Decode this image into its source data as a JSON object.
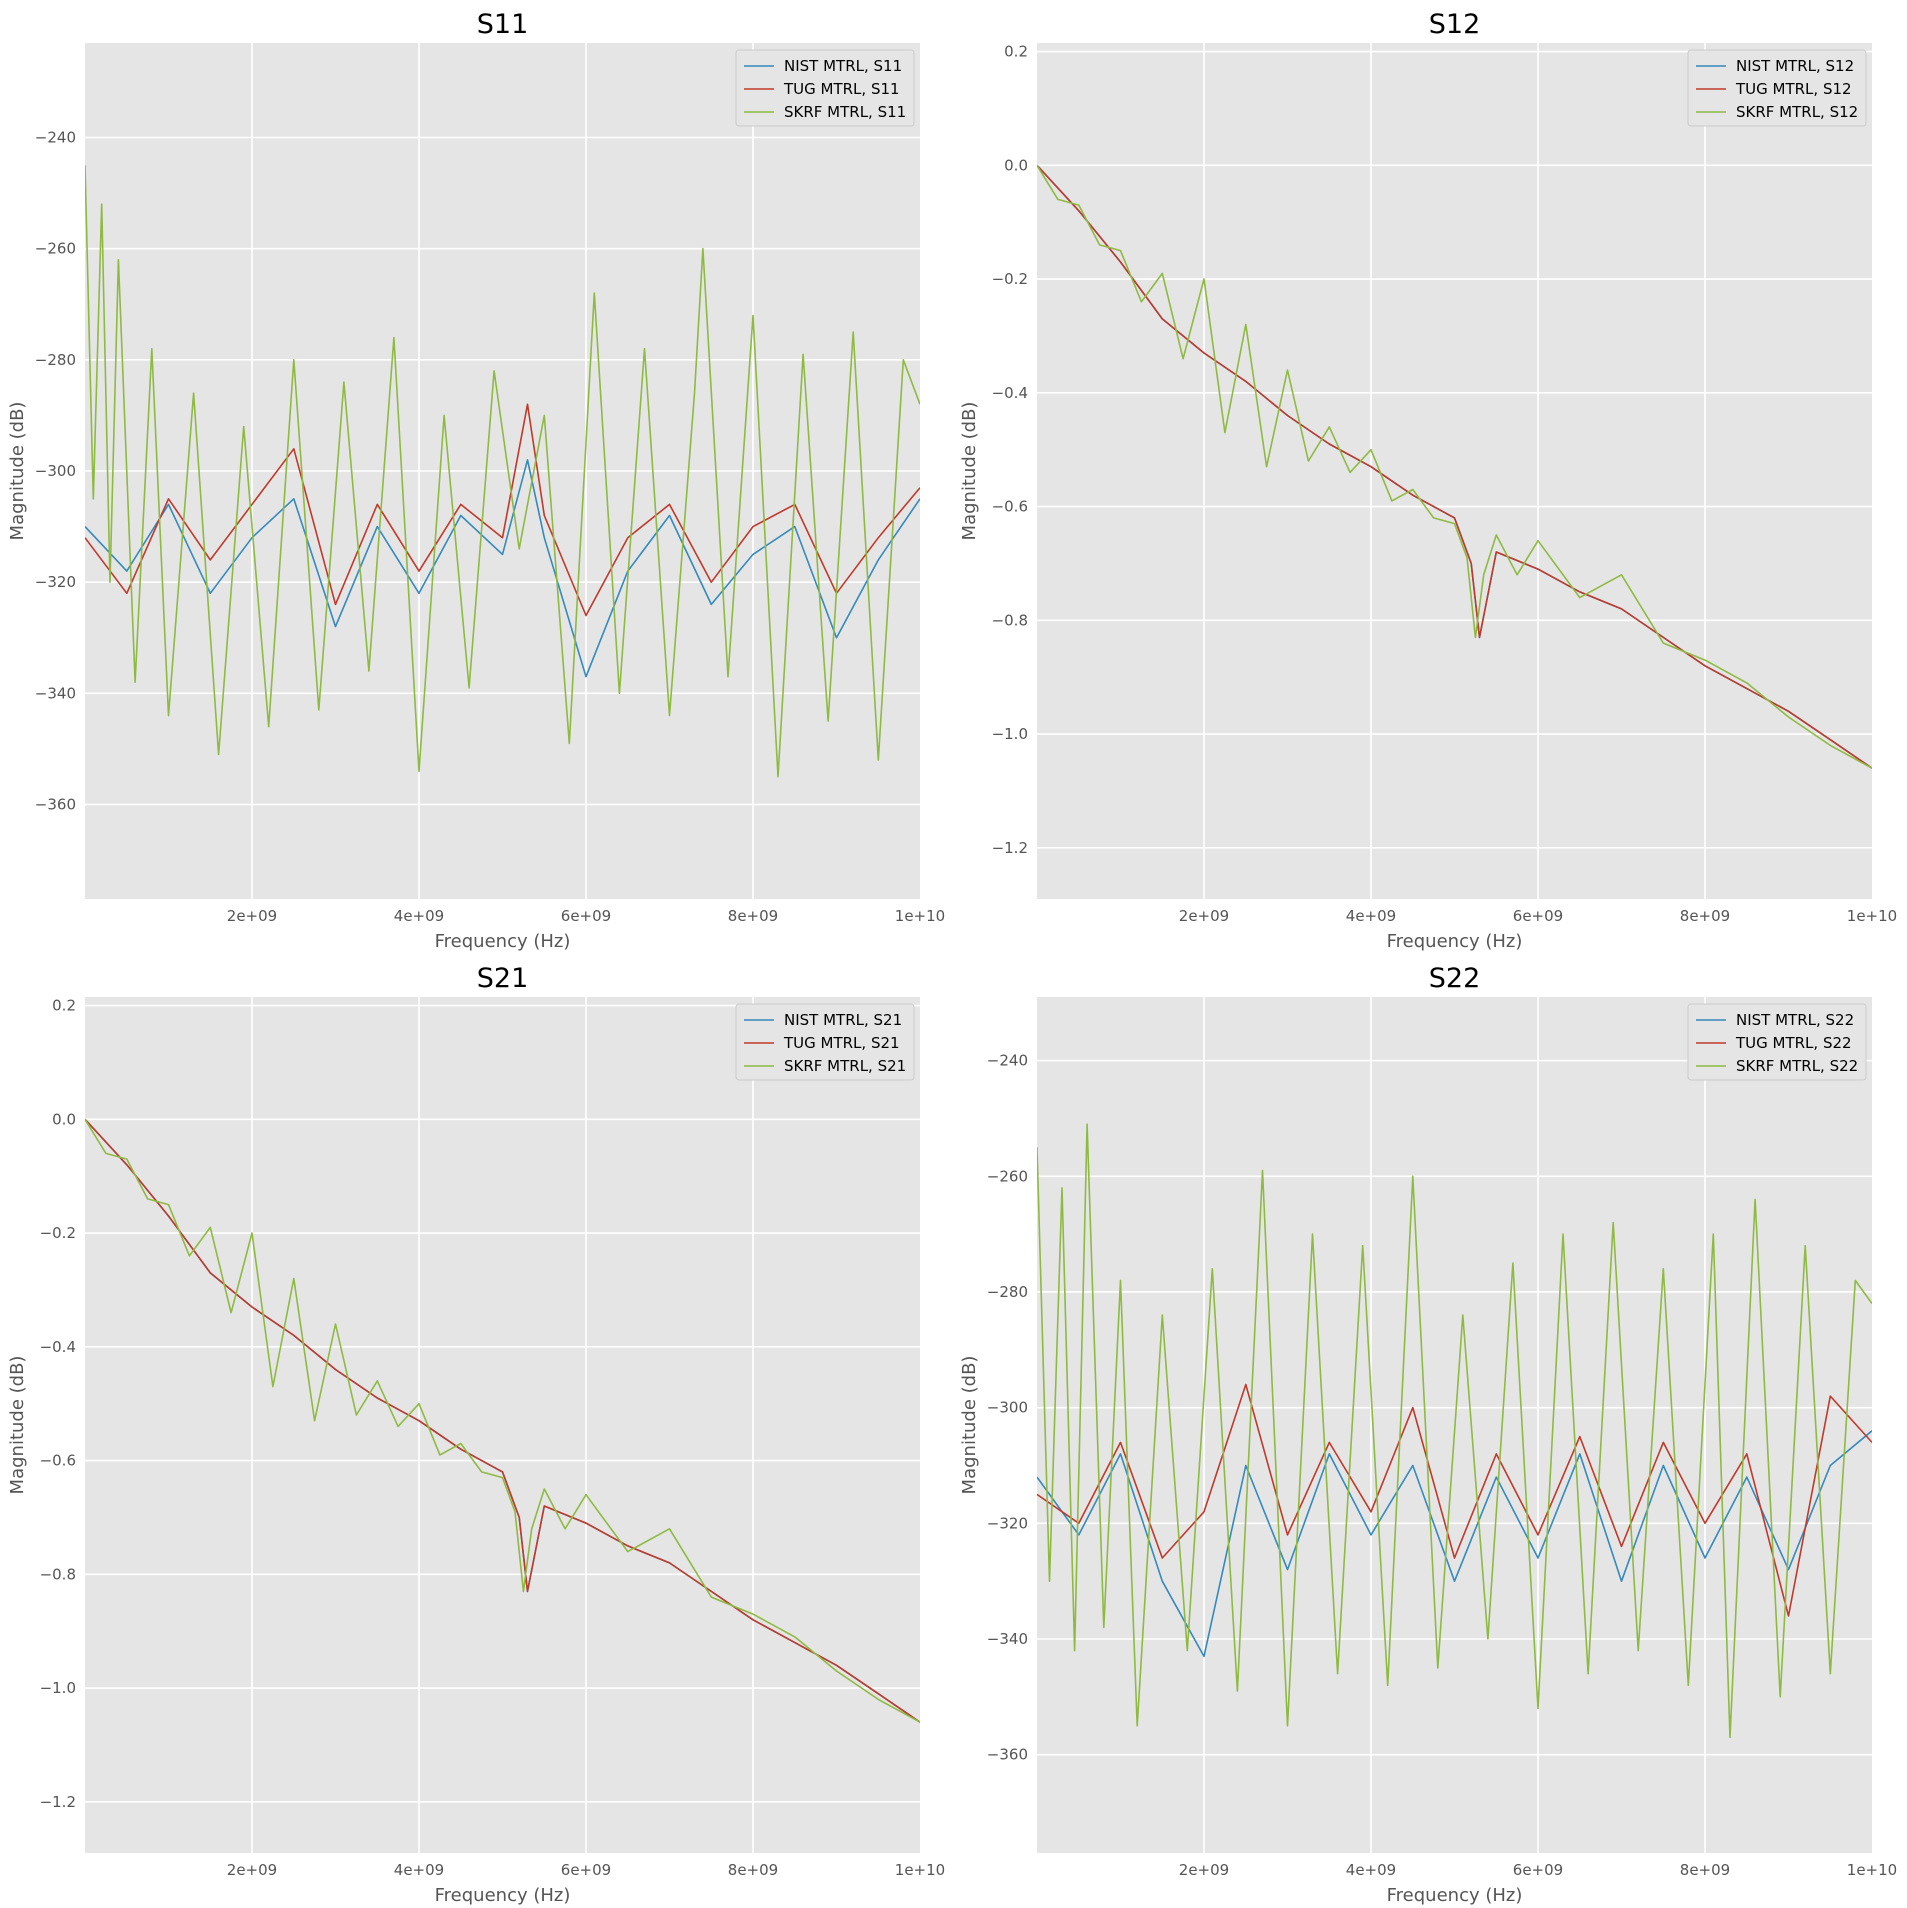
{
  "colors": {
    "nist": "#348abd",
    "tug": "#c0392b",
    "skrf": "#8eba42",
    "axes_background": "#e5e5e5",
    "grid": "#ffffff"
  },
  "chart_data": [
    {
      "type": "line",
      "title": "S11",
      "xlabel": "Frequency (Hz)",
      "ylabel": "Magnitude (dB)",
      "xlim": [
        0,
        10000000000
      ],
      "ylim": [
        -377,
        -223
      ],
      "xticks": [
        2000000000,
        4000000000,
        6000000000,
        8000000000,
        10000000000
      ],
      "xtick_labels": [
        "2e+09",
        "4e+09",
        "6e+09",
        "8e+09",
        "1e+10"
      ],
      "yticks": [
        -240,
        -260,
        -280,
        -300,
        -320,
        -340,
        -360
      ],
      "ytick_labels": [
        "−240",
        "−260",
        "−280",
        "−300",
        "−320",
        "−340",
        "−360"
      ],
      "grid": true,
      "legend_position": "top-right",
      "series": [
        {
          "name": "NIST MTRL, S11",
          "color_key": "nist",
          "x": [
            0,
            500000000,
            1000000000,
            1500000000,
            2000000000,
            2500000000,
            3000000000,
            3500000000,
            4000000000,
            4500000000,
            5000000000,
            5300000000,
            5500000000,
            6000000000,
            6500000000,
            7000000000,
            7500000000,
            8000000000,
            8500000000,
            9000000000,
            9500000000,
            10000000000
          ],
          "y": [
            -310,
            -318,
            -306,
            -322,
            -312,
            -305,
            -328,
            -310,
            -322,
            -308,
            -315,
            -298,
            -312,
            -337,
            -318,
            -308,
            -324,
            -315,
            -310,
            -330,
            -316,
            -305
          ]
        },
        {
          "name": "TUG MTRL, S11",
          "color_key": "tug",
          "x": [
            0,
            500000000,
            1000000000,
            1500000000,
            2000000000,
            2500000000,
            3000000000,
            3500000000,
            4000000000,
            4500000000,
            5000000000,
            5300000000,
            5500000000,
            6000000000,
            6500000000,
            7000000000,
            7500000000,
            8000000000,
            8500000000,
            9000000000,
            9500000000,
            10000000000
          ],
          "y": [
            -312,
            -322,
            -305,
            -316,
            -306,
            -296,
            -324,
            -306,
            -318,
            -306,
            -312,
            -288,
            -308,
            -326,
            -312,
            -306,
            -320,
            -310,
            -306,
            -322,
            -312,
            -303
          ]
        },
        {
          "name": "SKRF MTRL, S11",
          "color_key": "skrf",
          "x": [
            0,
            100000000,
            200000000,
            300000000,
            400000000,
            600000000,
            800000000,
            1000000000,
            1300000000,
            1600000000,
            1900000000,
            2200000000,
            2500000000,
            2800000000,
            3100000000,
            3400000000,
            3700000000,
            4000000000,
            4300000000,
            4600000000,
            4900000000,
            5200000000,
            5500000000,
            5800000000,
            6100000000,
            6400000000,
            6700000000,
            7000000000,
            7300000000,
            7400000000,
            7700000000,
            8000000000,
            8300000000,
            8600000000,
            8900000000,
            9200000000,
            9500000000,
            9800000000,
            10000000000
          ],
          "y": [
            -245,
            -305,
            -252,
            -320,
            -262,
            -338,
            -278,
            -344,
            -286,
            -351,
            -292,
            -346,
            -280,
            -343,
            -284,
            -336,
            -276,
            -354,
            -290,
            -339,
            -282,
            -314,
            -290,
            -349,
            -268,
            -340,
            -278,
            -344,
            -286,
            -260,
            -337,
            -272,
            -355,
            -279,
            -345,
            -275,
            -352,
            -280,
            -288
          ]
        }
      ]
    },
    {
      "type": "line",
      "title": "S12",
      "xlabel": "Frequency (Hz)",
      "ylabel": "Magnitude (dB)",
      "xlim": [
        0,
        10000000000
      ],
      "ylim": [
        -1.29,
        0.215
      ],
      "xticks": [
        2000000000,
        4000000000,
        6000000000,
        8000000000,
        10000000000
      ],
      "xtick_labels": [
        "2e+09",
        "4e+09",
        "6e+09",
        "8e+09",
        "1e+10"
      ],
      "yticks": [
        0.2,
        0.0,
        -0.2,
        -0.4,
        -0.6,
        -0.8,
        -1.0,
        -1.2
      ],
      "ytick_labels": [
        "0.2",
        "0.0",
        "−0.2",
        "−0.4",
        "−0.6",
        "−0.8",
        "−1.0",
        "−1.2"
      ],
      "grid": true,
      "legend_position": "top-right",
      "series": [
        {
          "name": "NIST MTRL, S12",
          "color_key": "nist",
          "x": [
            0,
            500000000,
            1000000000,
            1500000000,
            2000000000,
            2500000000,
            3000000000,
            3500000000,
            4000000000,
            4500000000,
            5000000000,
            5200000000,
            5300000000,
            5500000000,
            6000000000,
            6500000000,
            7000000000,
            7500000000,
            8000000000,
            8500000000,
            9000000000,
            9500000000,
            10000000000
          ],
          "y": [
            0.0,
            -0.08,
            -0.17,
            -0.27,
            -0.33,
            -0.38,
            -0.44,
            -0.49,
            -0.53,
            -0.58,
            -0.62,
            -0.7,
            -0.83,
            -0.68,
            -0.71,
            -0.75,
            -0.78,
            -0.83,
            -0.88,
            -0.92,
            -0.96,
            -1.01,
            -1.06
          ]
        },
        {
          "name": "TUG MTRL, S12",
          "color_key": "tug",
          "x": [
            0,
            500000000,
            1000000000,
            1500000000,
            2000000000,
            2500000000,
            3000000000,
            3500000000,
            4000000000,
            4500000000,
            5000000000,
            5200000000,
            5300000000,
            5500000000,
            6000000000,
            6500000000,
            7000000000,
            7500000000,
            8000000000,
            8500000000,
            9000000000,
            9500000000,
            10000000000
          ],
          "y": [
            0.0,
            -0.08,
            -0.17,
            -0.27,
            -0.33,
            -0.38,
            -0.44,
            -0.49,
            -0.53,
            -0.58,
            -0.62,
            -0.7,
            -0.83,
            -0.68,
            -0.71,
            -0.75,
            -0.78,
            -0.83,
            -0.88,
            -0.92,
            -0.96,
            -1.01,
            -1.06
          ]
        },
        {
          "name": "SKRF MTRL, S12",
          "color_key": "skrf",
          "x": [
            0,
            250000000,
            500000000,
            750000000,
            1000000000,
            1250000000,
            1500000000,
            1750000000,
            2000000000,
            2250000000,
            2500000000,
            2750000000,
            3000000000,
            3250000000,
            3500000000,
            3750000000,
            4000000000,
            4250000000,
            4500000000,
            4750000000,
            5000000000,
            5150000000,
            5250000000,
            5350000000,
            5500000000,
            5750000000,
            6000000000,
            6500000000,
            7000000000,
            7500000000,
            8000000000,
            8500000000,
            9000000000,
            9500000000,
            10000000000
          ],
          "y": [
            0.0,
            -0.06,
            -0.07,
            -0.14,
            -0.15,
            -0.24,
            -0.19,
            -0.34,
            -0.2,
            -0.47,
            -0.28,
            -0.53,
            -0.36,
            -0.52,
            -0.46,
            -0.54,
            -0.5,
            -0.59,
            -0.57,
            -0.62,
            -0.63,
            -0.69,
            -0.83,
            -0.72,
            -0.65,
            -0.72,
            -0.66,
            -0.76,
            -0.72,
            -0.84,
            -0.87,
            -0.91,
            -0.97,
            -1.02,
            -1.06
          ]
        }
      ]
    },
    {
      "type": "line",
      "title": "S21",
      "xlabel": "Frequency (Hz)",
      "ylabel": "Magnitude (dB)",
      "xlim": [
        0,
        10000000000
      ],
      "ylim": [
        -1.29,
        0.215
      ],
      "xticks": [
        2000000000,
        4000000000,
        6000000000,
        8000000000,
        10000000000
      ],
      "xtick_labels": [
        "2e+09",
        "4e+09",
        "6e+09",
        "8e+09",
        "1e+10"
      ],
      "yticks": [
        0.2,
        0.0,
        -0.2,
        -0.4,
        -0.6,
        -0.8,
        -1.0,
        -1.2
      ],
      "ytick_labels": [
        "0.2",
        "0.0",
        "−0.2",
        "−0.4",
        "−0.6",
        "−0.8",
        "−1.0",
        "−1.2"
      ],
      "grid": true,
      "legend_position": "top-right",
      "series": [
        {
          "name": "NIST MTRL, S21",
          "color_key": "nist",
          "x": [
            0,
            500000000,
            1000000000,
            1500000000,
            2000000000,
            2500000000,
            3000000000,
            3500000000,
            4000000000,
            4500000000,
            5000000000,
            5200000000,
            5300000000,
            5500000000,
            6000000000,
            6500000000,
            7000000000,
            7500000000,
            8000000000,
            8500000000,
            9000000000,
            9500000000,
            10000000000
          ],
          "y": [
            0.0,
            -0.08,
            -0.17,
            -0.27,
            -0.33,
            -0.38,
            -0.44,
            -0.49,
            -0.53,
            -0.58,
            -0.62,
            -0.7,
            -0.83,
            -0.68,
            -0.71,
            -0.75,
            -0.78,
            -0.83,
            -0.88,
            -0.92,
            -0.96,
            -1.01,
            -1.06
          ]
        },
        {
          "name": "TUG MTRL, S21",
          "color_key": "tug",
          "x": [
            0,
            500000000,
            1000000000,
            1500000000,
            2000000000,
            2500000000,
            3000000000,
            3500000000,
            4000000000,
            4500000000,
            5000000000,
            5200000000,
            5300000000,
            5500000000,
            6000000000,
            6500000000,
            7000000000,
            7500000000,
            8000000000,
            8500000000,
            9000000000,
            9500000000,
            10000000000
          ],
          "y": [
            0.0,
            -0.08,
            -0.17,
            -0.27,
            -0.33,
            -0.38,
            -0.44,
            -0.49,
            -0.53,
            -0.58,
            -0.62,
            -0.7,
            -0.83,
            -0.68,
            -0.71,
            -0.75,
            -0.78,
            -0.83,
            -0.88,
            -0.92,
            -0.96,
            -1.01,
            -1.06
          ]
        },
        {
          "name": "SKRF MTRL, S21",
          "color_key": "skrf",
          "x": [
            0,
            250000000,
            500000000,
            750000000,
            1000000000,
            1250000000,
            1500000000,
            1750000000,
            2000000000,
            2250000000,
            2500000000,
            2750000000,
            3000000000,
            3250000000,
            3500000000,
            3750000000,
            4000000000,
            4250000000,
            4500000000,
            4750000000,
            5000000000,
            5150000000,
            5250000000,
            5350000000,
            5500000000,
            5750000000,
            6000000000,
            6500000000,
            7000000000,
            7500000000,
            8000000000,
            8500000000,
            9000000000,
            9500000000,
            10000000000
          ],
          "y": [
            0.0,
            -0.06,
            -0.07,
            -0.14,
            -0.15,
            -0.24,
            -0.19,
            -0.34,
            -0.2,
            -0.47,
            -0.28,
            -0.53,
            -0.36,
            -0.52,
            -0.46,
            -0.54,
            -0.5,
            -0.59,
            -0.57,
            -0.62,
            -0.63,
            -0.69,
            -0.83,
            -0.72,
            -0.65,
            -0.72,
            -0.66,
            -0.76,
            -0.72,
            -0.84,
            -0.87,
            -0.91,
            -0.97,
            -1.02,
            -1.06
          ]
        }
      ]
    },
    {
      "type": "line",
      "title": "S22",
      "xlabel": "Frequency (Hz)",
      "ylabel": "Magnitude (dB)",
      "xlim": [
        0,
        10000000000
      ],
      "ylim": [
        -377,
        -229
      ],
      "xticks": [
        2000000000,
        4000000000,
        6000000000,
        8000000000,
        10000000000
      ],
      "xtick_labels": [
        "2e+09",
        "4e+09",
        "6e+09",
        "8e+09",
        "1e+10"
      ],
      "yticks": [
        -240,
        -260,
        -280,
        -300,
        -320,
        -340,
        -360
      ],
      "ytick_labels": [
        "−240",
        "−260",
        "−280",
        "−300",
        "−320",
        "−340",
        "−360"
      ],
      "grid": true,
      "legend_position": "top-right",
      "series": [
        {
          "name": "NIST MTRL, S22",
          "color_key": "nist",
          "x": [
            0,
            500000000,
            1000000000,
            1500000000,
            2000000000,
            2500000000,
            3000000000,
            3500000000,
            4000000000,
            4500000000,
            5000000000,
            5500000000,
            6000000000,
            6500000000,
            7000000000,
            7500000000,
            8000000000,
            8500000000,
            9000000000,
            9500000000,
            10000000000
          ],
          "y": [
            -312,
            -322,
            -308,
            -330,
            -343,
            -310,
            -328,
            -308,
            -322,
            -310,
            -330,
            -312,
            -326,
            -308,
            -330,
            -310,
            -326,
            -312,
            -328,
            -310,
            -304
          ]
        },
        {
          "name": "TUG MTRL, S22",
          "color_key": "tug",
          "x": [
            0,
            500000000,
            1000000000,
            1500000000,
            2000000000,
            2500000000,
            3000000000,
            3500000000,
            4000000000,
            4500000000,
            5000000000,
            5500000000,
            6000000000,
            6500000000,
            7000000000,
            7500000000,
            8000000000,
            8500000000,
            9000000000,
            9500000000,
            10000000000
          ],
          "y": [
            -315,
            -320,
            -306,
            -326,
            -318,
            -296,
            -322,
            -306,
            -318,
            -300,
            -326,
            -308,
            -322,
            -305,
            -324,
            -306,
            -320,
            -308,
            -336,
            -298,
            -306
          ]
        },
        {
          "name": "SKRF MTRL, S22",
          "color_key": "skrf",
          "x": [
            0,
            150000000,
            300000000,
            450000000,
            600000000,
            800000000,
            1000000000,
            1200000000,
            1500000000,
            1800000000,
            2100000000,
            2400000000,
            2700000000,
            3000000000,
            3300000000,
            3600000000,
            3900000000,
            4200000000,
            4500000000,
            4800000000,
            5100000000,
            5400000000,
            5700000000,
            6000000000,
            6300000000,
            6600000000,
            6900000000,
            7200000000,
            7500000000,
            7800000000,
            8100000000,
            8300000000,
            8600000000,
            8900000000,
            9200000000,
            9500000000,
            9800000000,
            10000000000
          ],
          "y": [
            -255,
            -330,
            -262,
            -342,
            -251,
            -338,
            -278,
            -355,
            -284,
            -342,
            -276,
            -349,
            -259,
            -355,
            -270,
            -346,
            -272,
            -348,
            -260,
            -345,
            -284,
            -340,
            -275,
            -352,
            -270,
            -346,
            -268,
            -342,
            -276,
            -348,
            -270,
            -357,
            -264,
            -350,
            -272,
            -346,
            -278,
            -282
          ]
        }
      ]
    }
  ]
}
